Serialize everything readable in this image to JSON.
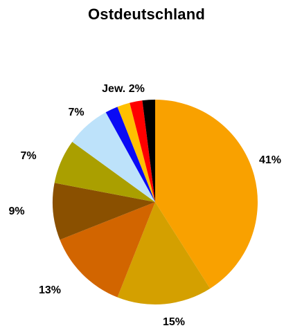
{
  "chart_data": {
    "type": "pie",
    "title": "Ostdeutschland",
    "start_angle": "12 o'clock",
    "direction": "clockwise",
    "legend": "none",
    "slices": [
      {
        "value": 41,
        "label": "41%",
        "color": "#F9A100"
      },
      {
        "value": 15,
        "label": "15%",
        "color": "#D4A000"
      },
      {
        "value": 13,
        "label": "13%",
        "color": "#D26500"
      },
      {
        "value": 9,
        "label": "9%",
        "color": "#8A5000"
      },
      {
        "value": 7,
        "label": "7%",
        "color": "#AA9F00"
      },
      {
        "value": 7,
        "label": "7%",
        "color": "#BDE2FA"
      },
      {
        "value": 2,
        "label": "",
        "color": "#0A0AF5"
      },
      {
        "value": 2,
        "label": "",
        "color": "#FFC000"
      },
      {
        "value": 2,
        "label": "",
        "color": "#FF0000"
      },
      {
        "value": 2,
        "label": "",
        "color": "#000000"
      }
    ],
    "group_label": "Jew. 2%"
  }
}
